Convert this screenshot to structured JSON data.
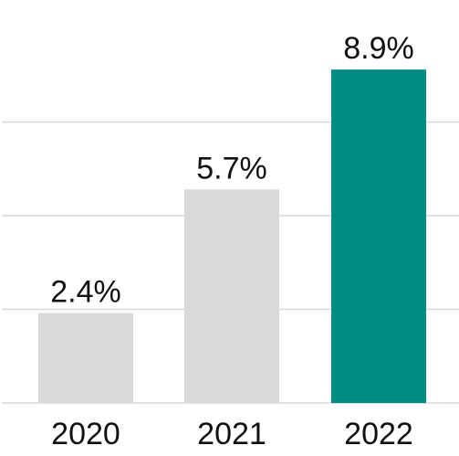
{
  "chart_data": {
    "type": "bar",
    "categories": [
      "2020",
      "2021",
      "2022"
    ],
    "values": [
      2.4,
      5.7,
      8.9
    ],
    "value_labels": [
      "2.4%",
      "5.7%",
      "8.9%"
    ],
    "unit": "%",
    "title": "",
    "xlabel": "",
    "ylabel": "",
    "ylim": [
      0,
      10
    ],
    "grid": true,
    "y_gridlines": [
      2.5,
      5,
      7.5
    ],
    "legend": "none",
    "bar_colors": [
      "#d9d9d9",
      "#d9d9d9",
      "#008c84"
    ],
    "gridline_color": "#d9d9d9",
    "baseline_color": "#d9d9d9"
  }
}
